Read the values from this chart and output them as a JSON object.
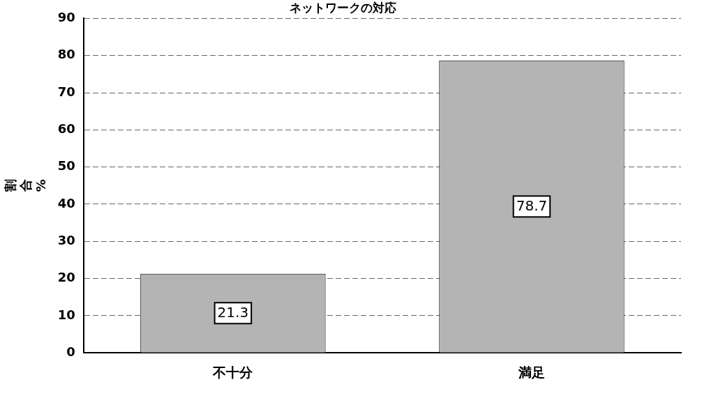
{
  "chart_data": {
    "type": "bar",
    "title": "ネットワークの対応",
    "ylabel": "割合%",
    "categories": [
      "不十分",
      "満足"
    ],
    "values": [
      21.3,
      78.7
    ],
    "color": "#b4b4b4",
    "ylim": [
      0,
      90
    ],
    "yticks": [
      0,
      10,
      20,
      30,
      40,
      50,
      60,
      70,
      80,
      90
    ],
    "grid": "y",
    "data_labels": true
  }
}
